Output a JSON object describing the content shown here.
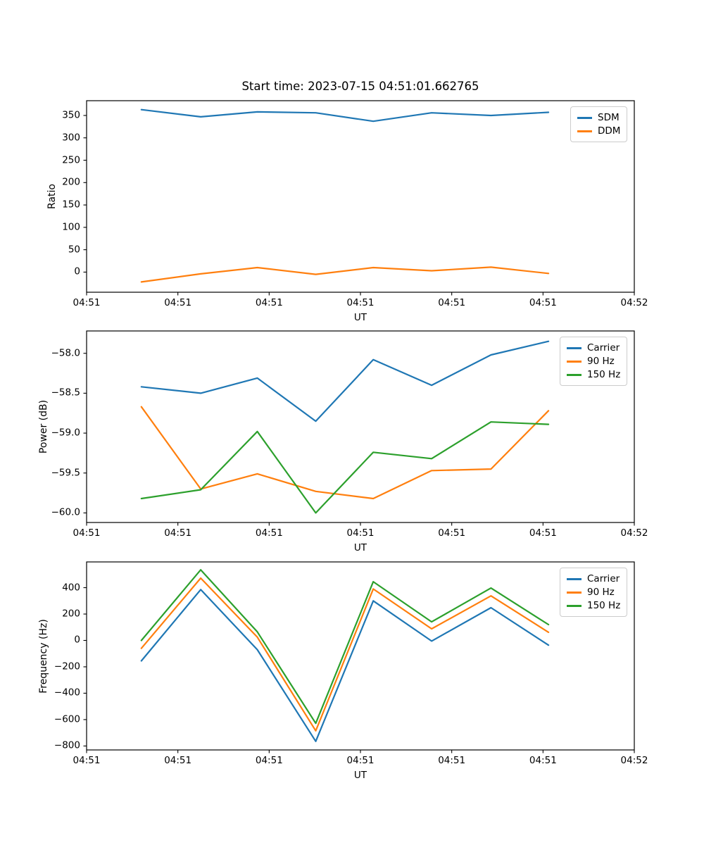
{
  "figure": {
    "title": "Start time: 2023-07-15 04:51:01.662765",
    "background": "#ffffff"
  },
  "colors": {
    "series_blue": "#1f77b4",
    "series_orange": "#ff7f0e",
    "series_green": "#2ca02c",
    "axis": "#000000",
    "legend_border": "#cccccc"
  },
  "chart_data": [
    {
      "id": "ratio",
      "type": "line",
      "title": "Start time: 2023-07-15 04:51:01.662765",
      "xlabel": "UT",
      "ylabel": "Ratio",
      "x_seconds": [
        6.0,
        12.5,
        18.7,
        25.1,
        31.4,
        37.8,
        44.3,
        50.6
      ],
      "xlim_seconds": [
        0,
        60
      ],
      "xtick_labels": [
        "04:51",
        "04:51",
        "04:51",
        "04:51",
        "04:51",
        "04:51",
        "04:52"
      ],
      "ylim": [
        -45,
        383
      ],
      "yticks": [
        0,
        50,
        100,
        150,
        200,
        250,
        300,
        350
      ],
      "ytick_labels": [
        "0",
        "50",
        "100",
        "150",
        "200",
        "250",
        "300",
        "350"
      ],
      "grid": false,
      "legend": {
        "loc": "upper right",
        "entries": [
          {
            "label": "SDM",
            "color": "#1f77b4"
          },
          {
            "label": "DDM",
            "color": "#ff7f0e"
          }
        ]
      },
      "series": [
        {
          "name": "SDM",
          "color": "#1f77b4",
          "values": [
            363,
            347,
            358,
            356,
            337,
            356,
            350,
            357
          ]
        },
        {
          "name": "DDM",
          "color": "#ff7f0e",
          "values": [
            -22,
            -4,
            10,
            -5,
            10,
            3,
            11,
            -3
          ]
        }
      ]
    },
    {
      "id": "power",
      "type": "line",
      "title": "",
      "xlabel": "UT",
      "ylabel": "Power (dB)",
      "x_seconds": [
        6.0,
        12.5,
        18.7,
        25.1,
        31.4,
        37.8,
        44.3,
        50.6
      ],
      "xlim_seconds": [
        0,
        60
      ],
      "xtick_labels": [
        "04:51",
        "04:51",
        "04:51",
        "04:51",
        "04:51",
        "04:51",
        "04:52"
      ],
      "ylim": [
        -60.12,
        -57.72
      ],
      "yticks": [
        -58.0,
        -58.5,
        -59.0,
        -59.5,
        -60.0
      ],
      "ytick_labels": [
        "−58.0",
        "−58.5",
        "−59.0",
        "−59.5",
        "−60.0"
      ],
      "grid": false,
      "legend": {
        "loc": "upper right",
        "entries": [
          {
            "label": "Carrier",
            "color": "#1f77b4"
          },
          {
            "label": "90 Hz",
            "color": "#ff7f0e"
          },
          {
            "label": "150 Hz",
            "color": "#2ca02c"
          }
        ]
      },
      "series": [
        {
          "name": "Carrier",
          "color": "#1f77b4",
          "values": [
            -58.42,
            -58.5,
            -58.31,
            -58.85,
            -58.08,
            -58.4,
            -58.02,
            -57.85
          ]
        },
        {
          "name": "90 Hz",
          "color": "#ff7f0e",
          "values": [
            -58.67,
            -59.7,
            -59.51,
            -59.73,
            -59.82,
            -59.47,
            -59.45,
            -58.72
          ]
        },
        {
          "name": "150 Hz",
          "color": "#2ca02c",
          "values": [
            -59.82,
            -59.71,
            -58.98,
            -60.0,
            -59.24,
            -59.32,
            -58.86,
            -58.89
          ]
        }
      ]
    },
    {
      "id": "freq",
      "type": "line",
      "title": "",
      "xlabel": "UT",
      "ylabel": "Frequency (Hz)",
      "x_seconds": [
        6.0,
        12.5,
        18.7,
        25.1,
        31.4,
        37.8,
        44.3,
        50.6
      ],
      "xlim_seconds": [
        0,
        60
      ],
      "xtick_labels": [
        "04:51",
        "04:51",
        "04:51",
        "04:51",
        "04:51",
        "04:51",
        "04:52"
      ],
      "ylim": [
        -830,
        595
      ],
      "yticks": [
        400,
        200,
        0,
        -200,
        -400,
        -600,
        -800
      ],
      "ytick_labels": [
        "400",
        "200",
        "0",
        "−200",
        "−400",
        "−600",
        "−800"
      ],
      "grid": false,
      "legend": {
        "loc": "upper right",
        "entries": [
          {
            "label": "Carrier",
            "color": "#1f77b4"
          },
          {
            "label": "90 Hz",
            "color": "#ff7f0e"
          },
          {
            "label": "150 Hz",
            "color": "#2ca02c"
          }
        ]
      },
      "series": [
        {
          "name": "Carrier",
          "color": "#1f77b4",
          "values": [
            -155,
            385,
            -70,
            -765,
            300,
            -5,
            248,
            -36
          ]
        },
        {
          "name": "90 Hz",
          "color": "#ff7f0e",
          "values": [
            -60,
            472,
            25,
            -685,
            390,
            88,
            338,
            62
          ]
        },
        {
          "name": "150 Hz",
          "color": "#2ca02c",
          "values": [
            0,
            535,
            65,
            -628,
            445,
            141,
            397,
            120
          ]
        }
      ]
    }
  ]
}
